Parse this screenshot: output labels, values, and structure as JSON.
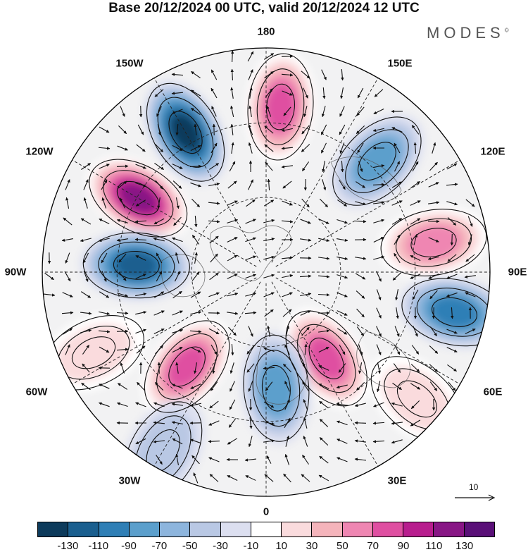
{
  "title": "Base 20/12/2024 00 UTC, valid 20/12/2024 12 UTC",
  "brand": "MODES",
  "brand_mark": "©",
  "longitude_labels": {
    "top": "180",
    "top_left": "150W",
    "top_right": "150E",
    "upper_left": "120W",
    "upper_right": "120E",
    "left": "90W",
    "right": "90E",
    "lower_left": "60W",
    "lower_right": "60E",
    "bottom_left": "30W",
    "bottom_right": "30E",
    "bottom": "0"
  },
  "reference_vector": {
    "label": "10"
  },
  "colorbar": {
    "colors": [
      "#0d3b5c",
      "#1a5f8f",
      "#2f7fb6",
      "#5b9fcc",
      "#8db5dd",
      "#b9c8e4",
      "#dcdff0",
      "#ffffff",
      "#fadbdd",
      "#f5b4bb",
      "#ef86b2",
      "#df4fa1",
      "#b81d8e",
      "#881685",
      "#5a1078"
    ],
    "ticks": [
      "-130",
      "-110",
      "-90",
      "-70",
      "-50",
      "-30",
      "-10",
      "10",
      "30",
      "50",
      "70",
      "90",
      "110",
      "130"
    ]
  },
  "anomaly_centers": [
    {
      "sign": "negative",
      "value": -130,
      "lon_deg": -150,
      "rel_radius": 0.72
    },
    {
      "sign": "positive",
      "value": 130,
      "lon_deg": -120,
      "rel_radius": 0.66
    },
    {
      "sign": "positive",
      "value": 90,
      "lon_deg": 175,
      "rel_radius": 0.74
    },
    {
      "sign": "negative",
      "value": -70,
      "lon_deg": 135,
      "rel_radius": 0.7
    },
    {
      "sign": "positive",
      "value": 70,
      "lon_deg": 100,
      "rel_radius": 0.76
    },
    {
      "sign": "negative",
      "value": -90,
      "lon_deg": 78,
      "rel_radius": 0.86
    },
    {
      "sign": "positive",
      "value": 90,
      "lon_deg": 35,
      "rel_radius": 0.47
    },
    {
      "sign": "negative",
      "value": -70,
      "lon_deg": 5,
      "rel_radius": 0.52
    },
    {
      "sign": "positive",
      "value": 90,
      "lon_deg": -40,
      "rel_radius": 0.55
    },
    {
      "sign": "negative",
      "value": -110,
      "lon_deg": -93,
      "rel_radius": 0.58
    },
    {
      "sign": "positive",
      "value": 30,
      "lon_deg": 50,
      "rel_radius": 0.88
    },
    {
      "sign": "positive",
      "value": 30,
      "lon_deg": -65,
      "rel_radius": 0.85
    },
    {
      "sign": "negative",
      "value": -30,
      "lon_deg": -30,
      "rel_radius": 0.92
    }
  ]
}
